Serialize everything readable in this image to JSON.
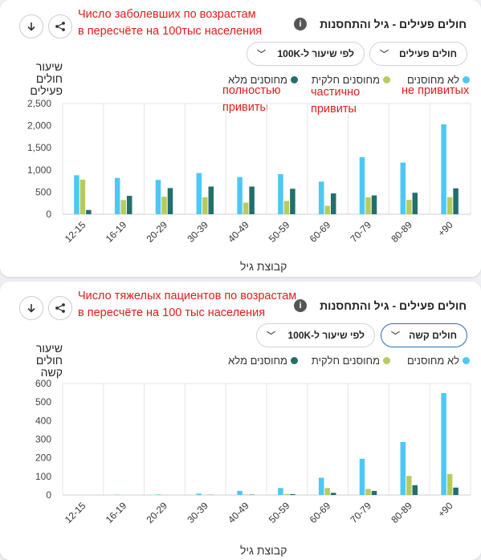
{
  "colors": {
    "unvaccinated": "#4dc7f5",
    "partial": "#b5cc5c",
    "full": "#226f6c",
    "annotation": "#e21b1b"
  },
  "cards": [
    {
      "note_lines": [
        "Число заболевших по возрастам",
        "в пересчёте на 100тыс населения"
      ],
      "title": "חולים פעילים - גיל והתחסנות",
      "dropdown_status": "חולים פעילים",
      "dropdown_rate": "לפי שיעור ל-100K",
      "ylabel_lines": [
        "שיעור",
        "חולים",
        "פעילים"
      ],
      "legend": {
        "unvaccinated": "לא מחוסנים",
        "partial": "מחוסנים חלקית",
        "full": "מחוסנים מלא"
      },
      "legend_annotations": {
        "unvaccinated": [
          "не привитых"
        ],
        "partial": [
          "частично",
          "привиты"
        ],
        "full": [
          "полностью",
          "привиты"
        ]
      },
      "xlabel": "קבוצת גיל",
      "chart_data": {
        "type": "bar",
        "categories": [
          "12-15",
          "16-19",
          "20-29",
          "30-39",
          "40-49",
          "50-59",
          "60-69",
          "70-79",
          "80-89",
          "+90"
        ],
        "yticks": [
          "0",
          "500",
          "1,000",
          "1,500",
          "2,000",
          "2,500"
        ],
        "ylim": [
          0,
          2500
        ],
        "series": [
          {
            "name": "לא מחוסנים",
            "values": [
              880,
              820,
              775,
              930,
              840,
              905,
              735,
              1290,
              1165,
              2030
            ]
          },
          {
            "name": "מחוסנים חלקית",
            "values": [
              780,
              320,
              395,
              385,
              260,
              300,
              190,
              380,
              325,
              385
            ]
          },
          {
            "name": "מחוסנים מלא",
            "values": [
              95,
              415,
              590,
              625,
              625,
              575,
              470,
              425,
              485,
              585
            ]
          }
        ]
      }
    },
    {
      "note_lines": [
        "Число тяжелых пациентов по возрастам",
        "в пересчёте на 100 тыс населения"
      ],
      "title": "חולים פעילים - גיל והתחסנות",
      "dropdown_status": "חולים קשה",
      "dropdown_rate": "לפי שיעור ל-100K",
      "ylabel_lines": [
        "שיעור",
        "חולים",
        "קשה"
      ],
      "legend": {
        "unvaccinated": "לא מחוסנים",
        "partial": "מחוסנים חלקית",
        "full": "מחוסנים מלא"
      },
      "xlabel": "קבוצת גיל",
      "chart_data": {
        "type": "bar",
        "categories": [
          "12-15",
          "16-19",
          "20-29",
          "30-39",
          "40-49",
          "50-59",
          "60-69",
          "70-79",
          "80-89",
          "+90"
        ],
        "yticks": [
          "0",
          "100",
          "200",
          "300",
          "400",
          "500",
          "600"
        ],
        "ylim": [
          0,
          600
        ],
        "series": [
          {
            "name": "לא מחוסנים",
            "values": [
              0,
              2,
              3,
              7,
              22,
              38,
              93,
              195,
              285,
              548
            ]
          },
          {
            "name": "מחוסנים חלקית",
            "values": [
              0,
              0,
              0,
              1,
              3,
              6,
              38,
              33,
              103,
              113
            ]
          },
          {
            "name": "מחוסנים מלא",
            "values": [
              0,
              0,
              0,
              1,
              2,
              5,
              12,
              22,
              53,
              40
            ]
          }
        ]
      }
    }
  ]
}
